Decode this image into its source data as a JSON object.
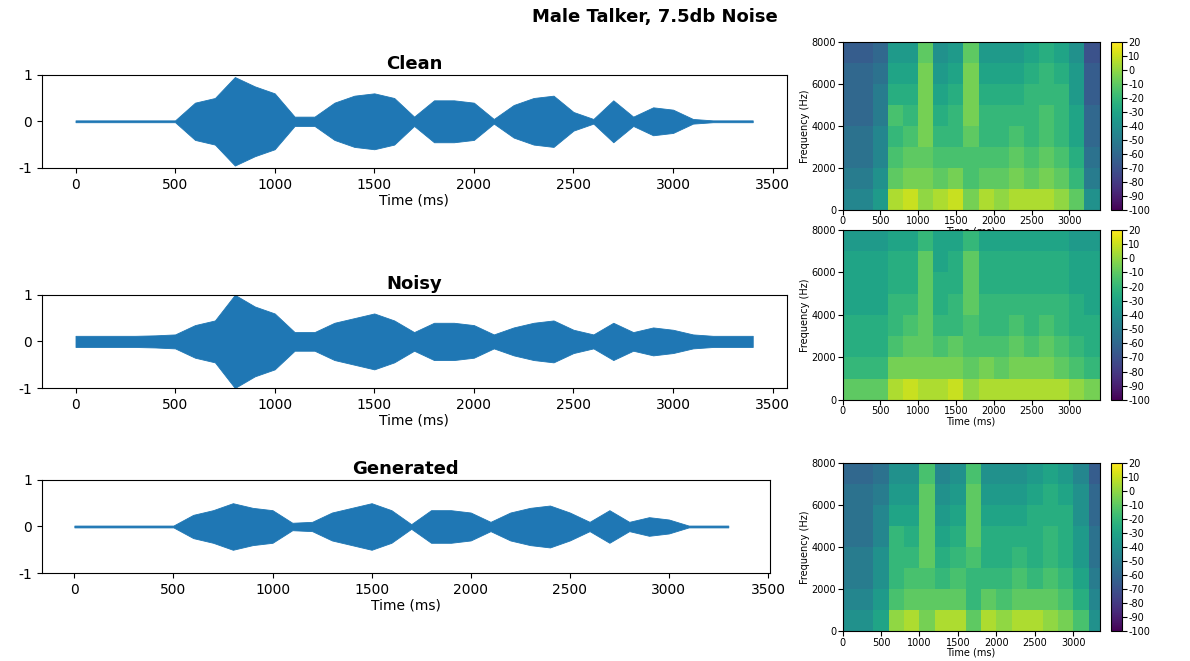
{
  "title": "Male Talker, 7.5db Noise",
  "chart_data": [
    {
      "type": "area",
      "title": "Clean",
      "x_label": "Time (ms)",
      "color": "#1f77b4",
      "x": [
        0,
        100,
        200,
        300,
        400,
        500,
        600,
        700,
        800,
        900,
        1000,
        1100,
        1200,
        1300,
        1400,
        1500,
        1600,
        1700,
        1800,
        1900,
        2000,
        2100,
        2200,
        2300,
        2400,
        2500,
        2600,
        2700,
        2800,
        2900,
        3000,
        3100,
        3200,
        3300,
        3400
      ],
      "values": [
        0.02,
        0.02,
        0.02,
        0.02,
        0.02,
        0.02,
        0.4,
        0.5,
        0.95,
        0.75,
        0.6,
        0.1,
        0.1,
        0.4,
        0.55,
        0.6,
        0.5,
        0.1,
        0.45,
        0.45,
        0.4,
        0.05,
        0.35,
        0.5,
        0.55,
        0.2,
        0.05,
        0.45,
        0.1,
        0.3,
        0.25,
        0.05,
        0.02,
        0.02,
        0.02
      ],
      "xlim": [
        -170,
        3570
      ],
      "ylim": [
        -1,
        1
      ],
      "xticks": [
        0,
        500,
        1000,
        1500,
        2000,
        2500,
        3000,
        3500
      ],
      "yticks": [
        -1,
        0,
        1
      ]
    },
    {
      "type": "heatmap",
      "x_label": "Time (ms)",
      "y_label": "Frequency (Hz)",
      "color": "viridis",
      "x_edges": [
        0,
        200,
        400,
        600,
        800,
        1000,
        1200,
        1400,
        1600,
        1800,
        2000,
        2200,
        2400,
        2600,
        2800,
        3000,
        3200,
        3400
      ],
      "y_edges": [
        0,
        1000,
        2000,
        3000,
        4000,
        5000,
        6000,
        7000,
        8000
      ],
      "cells": [
        [
          -45,
          -45,
          -35,
          5,
          10,
          0,
          5,
          10,
          -5,
          5,
          0,
          5,
          5,
          5,
          0,
          -10,
          -40
        ],
        [
          -50,
          -50,
          -40,
          -10,
          -5,
          -5,
          -10,
          -5,
          -15,
          -10,
          -10,
          -5,
          -10,
          -5,
          -10,
          -20,
          -50
        ],
        [
          -55,
          -55,
          -45,
          -15,
          -10,
          -10,
          -15,
          -15,
          -15,
          -15,
          -15,
          -10,
          -15,
          -10,
          -15,
          -25,
          -55
        ],
        [
          -55,
          -55,
          -45,
          -20,
          -15,
          -5,
          -20,
          -20,
          -10,
          -20,
          -20,
          -15,
          -20,
          -15,
          -20,
          -30,
          -60
        ],
        [
          -60,
          -60,
          -50,
          -15,
          -20,
          -5,
          -25,
          -20,
          -5,
          -20,
          -20,
          -20,
          -20,
          -15,
          -20,
          -30,
          -60
        ],
        [
          -60,
          -60,
          -50,
          -25,
          -25,
          -5,
          -30,
          -25,
          -5,
          -25,
          -25,
          -25,
          -20,
          -20,
          -20,
          -35,
          -65
        ],
        [
          -60,
          -60,
          -55,
          -30,
          -30,
          -5,
          -35,
          -30,
          -5,
          -30,
          -30,
          -30,
          -25,
          -20,
          -25,
          -35,
          -65
        ],
        [
          -65,
          -65,
          -60,
          -35,
          -35,
          -10,
          -40,
          -35,
          -10,
          -35,
          -35,
          -35,
          -30,
          -25,
          -30,
          -40,
          -70
        ]
      ],
      "xlim": [
        0,
        3400
      ],
      "ylim": [
        0,
        8000
      ],
      "xticks": [
        0,
        500,
        1000,
        1500,
        2000,
        2500,
        3000
      ],
      "yticks": [
        0,
        2000,
        4000,
        6000,
        8000
      ],
      "colorbar_range": [
        -100,
        20
      ],
      "colorbar_ticks": [
        20,
        10,
        0,
        -10,
        -20,
        -30,
        -40,
        -50,
        -60,
        -70,
        -80,
        -90,
        -100
      ]
    },
    {
      "type": "area",
      "title": "Noisy",
      "x_label": "Time (ms)",
      "color": "#1f77b4",
      "x": [
        0,
        100,
        200,
        300,
        400,
        500,
        600,
        700,
        800,
        900,
        1000,
        1100,
        1200,
        1300,
        1400,
        1500,
        1600,
        1700,
        1800,
        1900,
        2000,
        2100,
        2200,
        2300,
        2400,
        2500,
        2600,
        2700,
        2800,
        2900,
        3000,
        3100,
        3200,
        3300,
        3400
      ],
      "values": [
        0.12,
        0.12,
        0.12,
        0.12,
        0.13,
        0.15,
        0.35,
        0.45,
        1.0,
        0.75,
        0.6,
        0.2,
        0.2,
        0.4,
        0.5,
        0.6,
        0.45,
        0.2,
        0.4,
        0.4,
        0.35,
        0.15,
        0.3,
        0.4,
        0.45,
        0.25,
        0.15,
        0.4,
        0.2,
        0.3,
        0.25,
        0.15,
        0.12,
        0.12,
        0.12
      ],
      "xlim": [
        -170,
        3570
      ],
      "ylim": [
        -1,
        1
      ],
      "xticks": [
        0,
        500,
        1000,
        1500,
        2000,
        2500,
        3000,
        3500
      ],
      "yticks": [
        -1,
        0,
        1
      ]
    },
    {
      "type": "heatmap",
      "x_label": "Time (ms)",
      "y_label": "Frequency (Hz)",
      "color": "viridis",
      "x_edges": [
        0,
        200,
        400,
        600,
        800,
        1000,
        1200,
        1400,
        1600,
        1800,
        2000,
        2200,
        2400,
        2600,
        2800,
        3000,
        3200,
        3400
      ],
      "y_edges": [
        0,
        1000,
        2000,
        3000,
        4000,
        5000,
        6000,
        7000,
        8000
      ],
      "cells": [
        [
          -10,
          -10,
          -10,
          5,
          10,
          5,
          5,
          10,
          0,
          5,
          5,
          5,
          5,
          5,
          5,
          0,
          -5
        ],
        [
          -20,
          -20,
          -20,
          -5,
          -5,
          -5,
          -5,
          -5,
          -10,
          -5,
          -10,
          -5,
          -5,
          -5,
          -10,
          -15,
          -20
        ],
        [
          -25,
          -25,
          -25,
          -15,
          -10,
          -10,
          -15,
          -10,
          -15,
          -15,
          -15,
          -10,
          -15,
          -10,
          -15,
          -20,
          -25
        ],
        [
          -25,
          -25,
          -25,
          -20,
          -15,
          -10,
          -20,
          -20,
          -15,
          -20,
          -20,
          -15,
          -20,
          -15,
          -20,
          -25,
          -25
        ],
        [
          -30,
          -30,
          -30,
          -20,
          -20,
          -10,
          -25,
          -20,
          -10,
          -20,
          -20,
          -20,
          -20,
          -20,
          -20,
          -25,
          -30
        ],
        [
          -30,
          -30,
          -30,
          -25,
          -25,
          -10,
          -25,
          -25,
          -10,
          -25,
          -25,
          -25,
          -25,
          -25,
          -25,
          -30,
          -30
        ],
        [
          -30,
          -30,
          -30,
          -25,
          -25,
          -10,
          -30,
          -25,
          -10,
          -25,
          -25,
          -25,
          -25,
          -25,
          -25,
          -30,
          -30
        ],
        [
          -35,
          -35,
          -35,
          -30,
          -30,
          -20,
          -30,
          -30,
          -20,
          -30,
          -30,
          -30,
          -30,
          -30,
          -30,
          -35,
          -35
        ]
      ],
      "xlim": [
        0,
        3400
      ],
      "ylim": [
        0,
        8000
      ],
      "xticks": [
        0,
        500,
        1000,
        1500,
        2000,
        2500,
        3000
      ],
      "yticks": [
        0,
        2000,
        4000,
        6000,
        8000
      ],
      "colorbar_range": [
        -100,
        20
      ],
      "colorbar_ticks": [
        20,
        10,
        0,
        -10,
        -20,
        -30,
        -40,
        -50,
        -60,
        -70,
        -80,
        -90,
        -100
      ]
    },
    {
      "type": "area",
      "title": "Generated",
      "x_label": "Time (ms)",
      "color": "#1f77b4",
      "x": [
        0,
        100,
        200,
        300,
        400,
        500,
        600,
        700,
        800,
        900,
        1000,
        1100,
        1200,
        1300,
        1400,
        1500,
        1600,
        1700,
        1800,
        1900,
        2000,
        2100,
        2200,
        2300,
        2400,
        2500,
        2600,
        2700,
        2800,
        2900,
        3000,
        3100,
        3200,
        3300
      ],
      "values": [
        0.02,
        0.02,
        0.02,
        0.02,
        0.02,
        0.02,
        0.25,
        0.35,
        0.5,
        0.4,
        0.35,
        0.08,
        0.1,
        0.3,
        0.4,
        0.5,
        0.35,
        0.05,
        0.35,
        0.35,
        0.3,
        0.1,
        0.3,
        0.4,
        0.45,
        0.3,
        0.1,
        0.35,
        0.1,
        0.2,
        0.15,
        0.02,
        0.02,
        0.02
      ],
      "xlim": [
        -165,
        3510
      ],
      "ylim": [
        -1,
        1
      ],
      "xticks": [
        0,
        500,
        1000,
        1500,
        2000,
        2500,
        3000,
        3500
      ],
      "yticks": [
        -1,
        0,
        1
      ]
    },
    {
      "type": "heatmap",
      "x_label": "Time (ms)",
      "y_label": "Frequency (Hz)",
      "color": "viridis",
      "x_edges": [
        0,
        200,
        400,
        600,
        800,
        1000,
        1200,
        1400,
        1600,
        1800,
        2000,
        2200,
        2400,
        2600,
        2800,
        3000,
        3200,
        3340
      ],
      "y_edges": [
        0,
        1000,
        2000,
        3000,
        4000,
        5000,
        6000,
        7000,
        8000
      ],
      "cells": [
        [
          -40,
          -40,
          -30,
          0,
          5,
          -5,
          5,
          5,
          -10,
          5,
          0,
          5,
          5,
          0,
          -5,
          -15,
          -40
        ],
        [
          -45,
          -45,
          -35,
          -15,
          -10,
          -10,
          -10,
          -10,
          -20,
          -10,
          -15,
          -10,
          -10,
          -10,
          -15,
          -25,
          -45
        ],
        [
          -50,
          -50,
          -40,
          -20,
          -15,
          -15,
          -20,
          -15,
          -20,
          -20,
          -20,
          -15,
          -20,
          -15,
          -20,
          -30,
          -50
        ],
        [
          -50,
          -50,
          -40,
          -20,
          -20,
          -10,
          -25,
          -20,
          -15,
          -25,
          -25,
          -20,
          -25,
          -20,
          -25,
          -35,
          -55
        ],
        [
          -55,
          -55,
          -45,
          -20,
          -25,
          -10,
          -30,
          -25,
          -10,
          -25,
          -25,
          -25,
          -25,
          -20,
          -25,
          -35,
          -55
        ],
        [
          -55,
          -55,
          -45,
          -30,
          -30,
          -10,
          -35,
          -30,
          -10,
          -30,
          -30,
          -30,
          -25,
          -25,
          -25,
          -40,
          -60
        ],
        [
          -55,
          -55,
          -50,
          -35,
          -35,
          -10,
          -40,
          -35,
          -10,
          -35,
          -35,
          -35,
          -30,
          -25,
          -30,
          -40,
          -60
        ],
        [
          -60,
          -60,
          -55,
          -40,
          -40,
          -15,
          -45,
          -40,
          -15,
          -40,
          -40,
          -40,
          -35,
          -30,
          -35,
          -45,
          -65
        ]
      ],
      "xlim": [
        0,
        3340
      ],
      "ylim": [
        0,
        8000
      ],
      "xticks": [
        0,
        500,
        1000,
        1500,
        2000,
        2500,
        3000
      ],
      "yticks": [
        0,
        2000,
        4000,
        6000,
        8000
      ],
      "colorbar_range": [
        -100,
        20
      ],
      "colorbar_ticks": [
        20,
        10,
        0,
        -10,
        -20,
        -30,
        -40,
        -50,
        -60,
        -70,
        -80,
        -90,
        -100
      ]
    }
  ]
}
